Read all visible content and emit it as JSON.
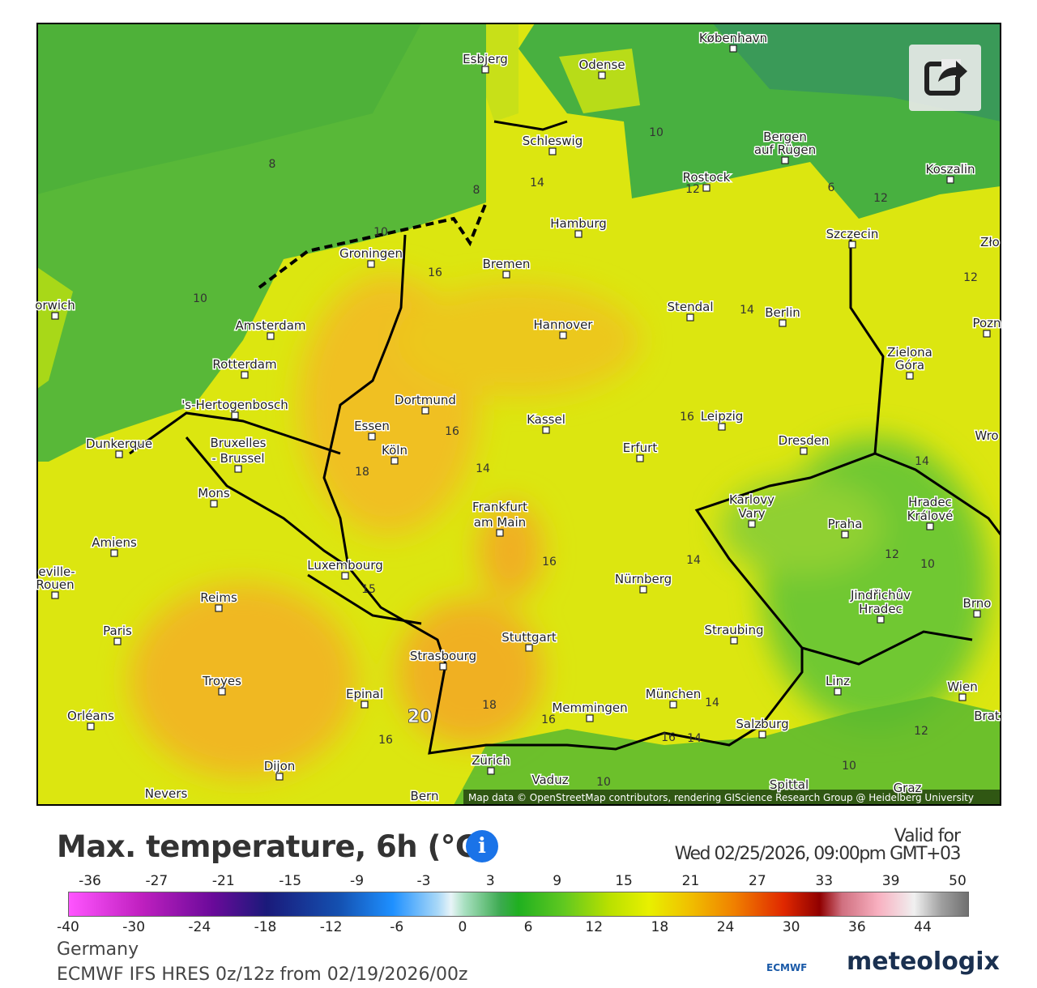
{
  "map": {
    "attribution": "Map data © OpenStreetMap contributors, rendering GIScience Research Group @ Heidelberg University",
    "cities": [
      "København",
      "Esbjerg",
      "Odense",
      "Schleswig",
      "Bergen",
      "auf Rügen",
      "Rostock",
      "Koszalin",
      "Hamburg",
      "Szczecin",
      "Zło",
      "Groningen",
      "Bremen",
      "orwich",
      "Stendal",
      "Berlin",
      "Amsterdam",
      "Hannover",
      "Pozn",
      "Zielona",
      "Góra",
      "Rotterdam",
      "'s-Hertogenbosch",
      "Dortmund",
      "Essen",
      "Kassel",
      "Leipzig",
      "Dunkerque",
      "Bruxelles",
      "- Brussel",
      "Köln",
      "Erfurt",
      "Dresden",
      "Wro",
      "Hradec",
      "Králové",
      "Karlovy",
      "Vary",
      "Mons",
      "Frankfurt",
      "am Main",
      "Praha",
      "Amiens",
      "Luxembourg",
      "eville-",
      "Rouen",
      "Nürnberg",
      "Jindřichův",
      "Hradec",
      "Brno",
      "Reims",
      "Paris",
      "Straubing",
      "Stuttgart",
      "Strasbourg",
      "Troyes",
      "Linz",
      "Wien",
      "Epinal",
      "München",
      "Memmingen",
      "Orléans",
      "Brat",
      "Salzburg",
      "Zürich",
      "Dijon",
      "Vaduz",
      "Spittal",
      "Graz",
      "Nevers",
      "Bern"
    ],
    "contour_labels": [
      8,
      8,
      10,
      10,
      10,
      12,
      12,
      6,
      12,
      14,
      14,
      16,
      16,
      16,
      18,
      14,
      16,
      14,
      12,
      10,
      14,
      15,
      18,
      16,
      20,
      16,
      14,
      16,
      14,
      12,
      10,
      10
    ]
  },
  "legend": {
    "title": "Max. temperature, 6h (°C)",
    "valid_label": "Valid for",
    "valid_time": "Wed 02/25/2026, 09:00pm GMT+03",
    "top_ticks": [
      -36,
      -27,
      -21,
      -15,
      -9,
      -3,
      3,
      9,
      15,
      21,
      27,
      33,
      39,
      50
    ],
    "bottom_ticks": [
      -40,
      -30,
      -24,
      -18,
      -12,
      -6,
      0,
      6,
      12,
      18,
      24,
      30,
      36,
      44
    ]
  },
  "footer": {
    "region": "Germany",
    "model": "ECMWF IFS HRES 0z/12z from 02/19/2026/00z",
    "ecmwf": "ECMWF",
    "brand": "meteologix"
  }
}
